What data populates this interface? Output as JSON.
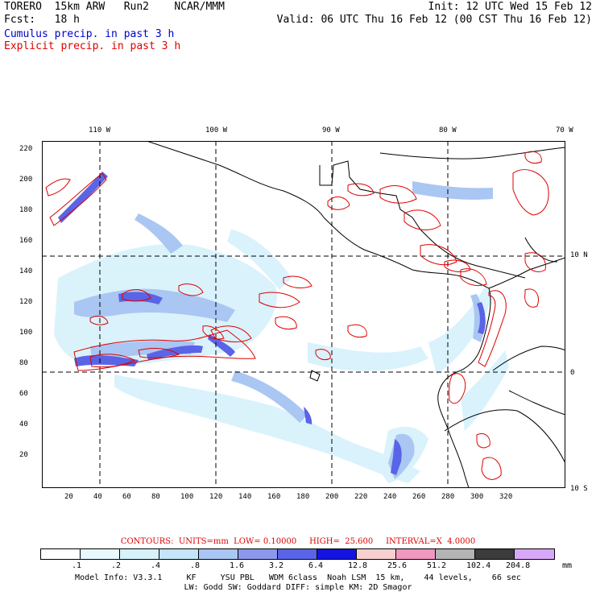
{
  "header": {
    "line1_left": "TORERO  15km ARW   Run2    NCAR/MMM",
    "line1_right": "Init: 12 UTC Wed 15 Feb 12",
    "line2_left": "Fcst:   18 h",
    "line2_right": "Valid: 06 UTC Thu 16 Feb 12 (00 CST Thu 16 Feb 12)",
    "line3": "Cumulus precip. in past 3 h",
    "line4": "Explicit precip. in past 3 h",
    "line3_color": "#0000c8",
    "line4_color": "#e00000"
  },
  "map": {
    "lon_labels": [
      "110 W",
      "100 W",
      "90 W",
      "80 W",
      "70 W"
    ],
    "lat_labels": [
      "10 N",
      "0",
      "10 S"
    ],
    "y_ticks": [
      "220",
      "200",
      "180",
      "160",
      "140",
      "120",
      "100",
      "80",
      "60",
      "40",
      "20"
    ],
    "x_ticks": [
      "20",
      "40",
      "60",
      "80",
      "100",
      "120",
      "140",
      "160",
      "180",
      "200",
      "220",
      "240",
      "260",
      "280",
      "300",
      "320"
    ],
    "frame_color": "#000000",
    "contour_color": "#e00000",
    "coast_color": "#000000"
  },
  "contours": {
    "text": "CONTOURS:  UNITS=mm  LOW= 0.10000     HIGH=  25.600     INTERVAL=X  4.0000"
  },
  "colorbar": {
    "colors": [
      "#ffffff",
      "#e8f8ff",
      "#d8f2fb",
      "#c4e6f8",
      "#aac6f2",
      "#8c98ec",
      "#5a64e6",
      "#1414e0",
      "#f8d0d0",
      "#f098c0",
      "#b4b4b4",
      "#3c3c3c",
      "#d8a8f8"
    ],
    "labels": [
      ".1",
      ".2",
      ".4",
      ".8",
      "1.6",
      "3.2",
      "6.4",
      "12.8",
      "25.6",
      "51.2",
      "102.4",
      "204.8"
    ],
    "unit": "mm"
  },
  "footer": {
    "line1": "Model Info: V3.3.1     KF     YSU PBL   WDM 6class  Noah LSM  15 km,    44 levels,    66 sec",
    "line2": "LW: Godd SW: Goddard DIFF: simple KM: 2D Smagor"
  }
}
